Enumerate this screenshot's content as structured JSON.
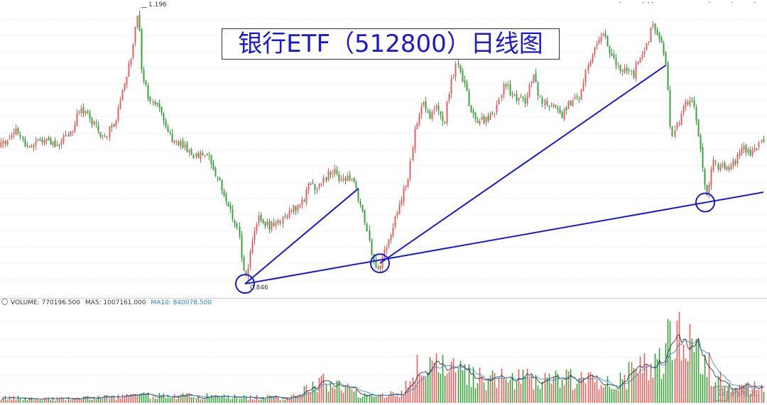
{
  "title": "银行ETF（512800）日线图",
  "price_labels": {
    "high": "1.196",
    "low": "0.846"
  },
  "volume_legend": {
    "volume": "VOLUME: 770196.500",
    "ma5": "MA5: 1007161.000",
    "ma10": "MA10: 840078.500"
  },
  "watermark": {
    "logo_glyph": "G",
    "text": "格隆汇"
  },
  "colors": {
    "up": "#e06060",
    "down": "#3aa03a",
    "trendline": "#1a1acc",
    "ma5": "#222222",
    "ma10": "#2a80c8"
  },
  "chart_data": {
    "type": "candlestick",
    "title": "银行ETF（512800）日线图",
    "price_range": [
      0.83,
      1.2
    ],
    "labeled_points": [
      {
        "label": "high",
        "value": 1.196
      },
      {
        "label": "low",
        "value": 0.846
      }
    ],
    "price_path": [
      [
        0,
        1.02
      ],
      [
        20,
        1.04
      ],
      [
        40,
        1.02
      ],
      [
        60,
        1.03
      ],
      [
        80,
        1.02
      ],
      [
        100,
        1.04
      ],
      [
        115,
        1.07
      ],
      [
        130,
        1.05
      ],
      [
        145,
        1.03
      ],
      [
        160,
        1.05
      ],
      [
        175,
        1.1
      ],
      [
        185,
        1.14
      ],
      [
        195,
        1.19
      ],
      [
        200,
        1.11
      ],
      [
        210,
        1.08
      ],
      [
        225,
        1.07
      ],
      [
        240,
        1.03
      ],
      [
        255,
        1.02
      ],
      [
        270,
        1.01
      ],
      [
        290,
        1.01
      ],
      [
        305,
        0.98
      ],
      [
        320,
        0.95
      ],
      [
        335,
        0.91
      ],
      [
        345,
        0.85
      ],
      [
        355,
        0.9
      ],
      [
        365,
        0.93
      ],
      [
        375,
        0.92
      ],
      [
        390,
        0.92
      ],
      [
        405,
        0.94
      ],
      [
        420,
        0.94
      ],
      [
        435,
        0.97
      ],
      [
        450,
        0.97
      ],
      [
        465,
        0.99
      ],
      [
        480,
        0.98
      ],
      [
        495,
        0.98
      ],
      [
        505,
        0.95
      ],
      [
        515,
        0.92
      ],
      [
        525,
        0.87
      ],
      [
        535,
        0.87
      ],
      [
        545,
        0.9
      ],
      [
        560,
        0.94
      ],
      [
        575,
        0.98
      ],
      [
        585,
        1.05
      ],
      [
        595,
        1.08
      ],
      [
        605,
        1.06
      ],
      [
        615,
        1.07
      ],
      [
        625,
        1.05
      ],
      [
        635,
        1.1
      ],
      [
        645,
        1.13
      ],
      [
        655,
        1.09
      ],
      [
        665,
        1.06
      ],
      [
        680,
        1.05
      ],
      [
        695,
        1.06
      ],
      [
        710,
        1.1
      ],
      [
        725,
        1.08
      ],
      [
        740,
        1.08
      ],
      [
        750,
        1.11
      ],
      [
        760,
        1.08
      ],
      [
        775,
        1.07
      ],
      [
        790,
        1.06
      ],
      [
        805,
        1.08
      ],
      [
        815,
        1.08
      ],
      [
        825,
        1.12
      ],
      [
        835,
        1.14
      ],
      [
        850,
        1.17
      ],
      [
        860,
        1.13
      ],
      [
        875,
        1.12
      ],
      [
        890,
        1.11
      ],
      [
        905,
        1.14
      ],
      [
        918,
        1.17
      ],
      [
        928,
        1.16
      ],
      [
        938,
        1.12
      ],
      [
        945,
        1.03
      ],
      [
        955,
        1.05
      ],
      [
        965,
        1.08
      ],
      [
        978,
        1.07
      ],
      [
        988,
        1.0
      ],
      [
        995,
        0.96
      ],
      [
        1005,
        1.0
      ],
      [
        1020,
        0.99
      ],
      [
        1035,
        1.0
      ],
      [
        1045,
        1.02
      ],
      [
        1060,
        1.01
      ],
      [
        1075,
        1.03
      ]
    ],
    "volume_path": [
      [
        0,
        0.06
      ],
      [
        100,
        0.05
      ],
      [
        200,
        0.09
      ],
      [
        300,
        0.08
      ],
      [
        400,
        0.06
      ],
      [
        465,
        0.28
      ],
      [
        500,
        0.12
      ],
      [
        560,
        0.1
      ],
      [
        595,
        0.5
      ],
      [
        620,
        0.4
      ],
      [
        700,
        0.28
      ],
      [
        780,
        0.3
      ],
      [
        860,
        0.25
      ],
      [
        920,
        0.45
      ],
      [
        945,
        0.75
      ],
      [
        965,
        0.9
      ],
      [
        980,
        0.7
      ],
      [
        1000,
        0.4
      ],
      [
        1030,
        0.15
      ],
      [
        1075,
        0.22
      ]
    ],
    "volume_max": 2200000,
    "volume_legend": {
      "volume": 770196.5,
      "ma5": 1007161.0,
      "ma10": 840078.5
    },
    "trendlines": [
      {
        "from": [
          345,
          0.846
        ],
        "to": [
          505,
          0.967
        ]
      },
      {
        "from": [
          345,
          0.846
        ],
        "to": [
          1075,
          0.962
        ]
      },
      {
        "from": [
          535,
          0.872
        ],
        "to": [
          938,
          1.123
        ]
      }
    ],
    "circled_points": [
      {
        "x": 345,
        "y": 0.846
      },
      {
        "x": 535,
        "y": 0.872
      },
      {
        "x": 993,
        "y": 0.949
      }
    ]
  }
}
